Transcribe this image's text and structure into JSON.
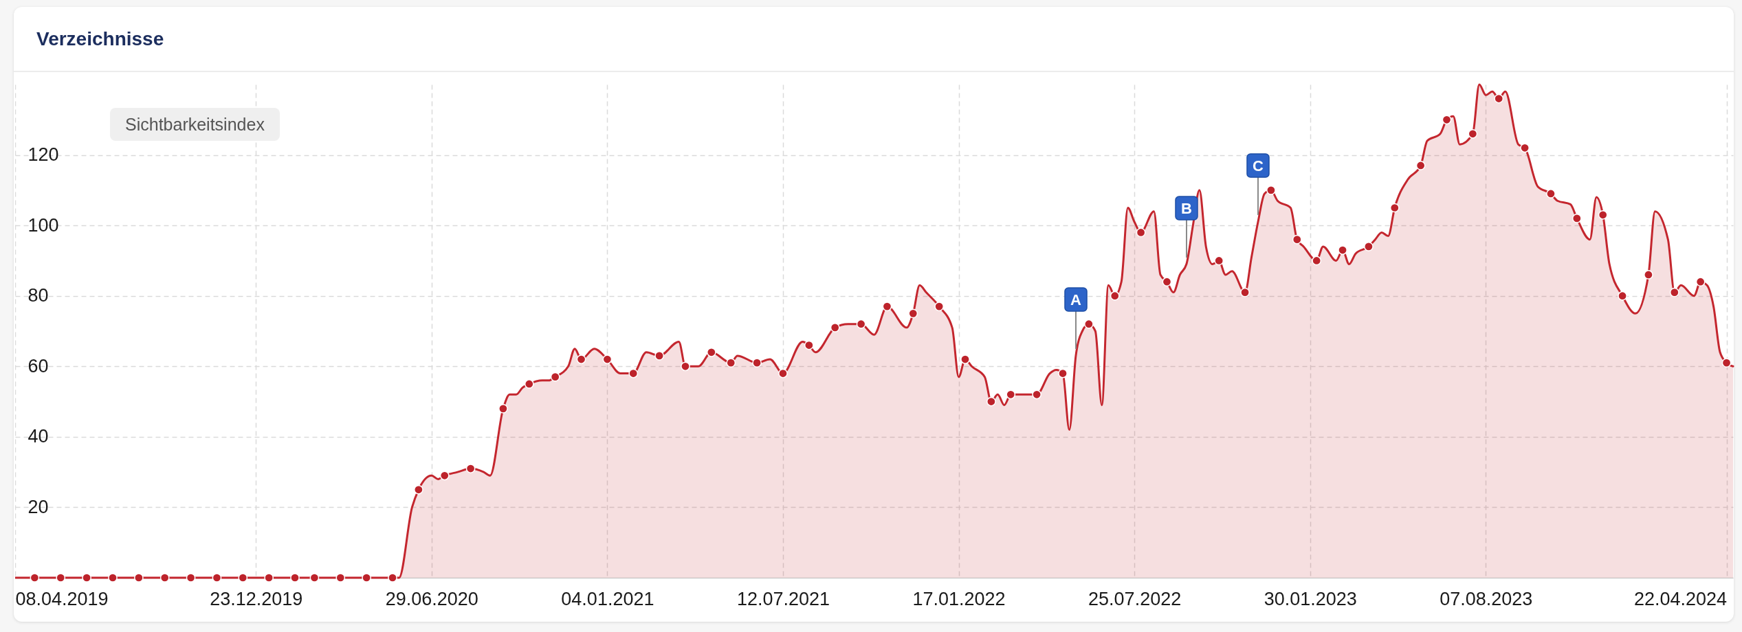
{
  "chart_data": {
    "type": "area",
    "title": "Verzeichnisse",
    "annotations": [
      "Sichtbarkeitsindex",
      {
        "text": "A",
        "x": "2022-05-23"
      },
      {
        "text": "B",
        "x": "2022-09-19"
      },
      {
        "text": "C",
        "x": "2022-12-05"
      }
    ],
    "xlim": [
      "2019-04-08",
      "2024-04-29"
    ],
    "xticks": [
      {
        "value": "2019-04-08",
        "label": "08.04.2019"
      },
      {
        "value": "2019-12-23",
        "label": "23.12.2019"
      },
      {
        "value": "2020-06-29",
        "label": "29.06.2020"
      },
      {
        "value": "2021-01-04",
        "label": "04.01.2021"
      },
      {
        "value": "2021-07-12",
        "label": "12.07.2021"
      },
      {
        "value": "2022-01-17",
        "label": "17.01.2022"
      },
      {
        "value": "2022-07-25",
        "label": "25.07.2022"
      },
      {
        "value": "2023-01-30",
        "label": "30.01.2023"
      },
      {
        "value": "2023-08-07",
        "label": "07.08.2023"
      },
      {
        "value": "2024-04-22",
        "label": "22.04.2024"
      }
    ],
    "ylim": [
      0,
      140
    ],
    "yticks": [
      20,
      40,
      60,
      80,
      100,
      120
    ],
    "grid": true,
    "series": [
      {
        "color": "#c4262e",
        "x": [
          "2019-04-08",
          "2019-04-29",
          "2019-05-27",
          "2019-06-24",
          "2019-07-22",
          "2019-08-19",
          "2019-09-16",
          "2019-10-14",
          "2019-11-11",
          "2019-12-09",
          "2020-01-06",
          "2020-02-03",
          "2020-02-24",
          "2020-03-23",
          "2020-04-20",
          "2020-05-18",
          "2020-05-25",
          "2020-06-08",
          "2020-06-15",
          "2020-06-29",
          "2020-07-06",
          "2020-07-13",
          "2020-07-27",
          "2020-08-10",
          "2020-08-24",
          "2020-08-31",
          "2020-09-14",
          "2020-09-21",
          "2020-09-28",
          "2020-10-05",
          "2020-10-12",
          "2020-10-26",
          "2020-11-02",
          "2020-11-09",
          "2020-11-23",
          "2020-11-30",
          "2020-12-07",
          "2020-12-21",
          "2021-01-04",
          "2021-01-18",
          "2021-02-01",
          "2021-02-15",
          "2021-03-01",
          "2021-03-22",
          "2021-03-29",
          "2021-04-12",
          "2021-04-26",
          "2021-05-17",
          "2021-05-24",
          "2021-06-14",
          "2021-06-28",
          "2021-07-12",
          "2021-08-02",
          "2021-08-09",
          "2021-08-16",
          "2021-09-06",
          "2021-09-20",
          "2021-10-04",
          "2021-10-18",
          "2021-11-01",
          "2021-11-22",
          "2021-11-29",
          "2021-12-06",
          "2021-12-13",
          "2021-12-27",
          "2022-01-10",
          "2022-01-17",
          "2022-01-24",
          "2022-01-31",
          "2022-02-14",
          "2022-02-21",
          "2022-02-28",
          "2022-03-07",
          "2022-03-14",
          "2022-03-28",
          "2022-04-11",
          "2022-04-25",
          "2022-05-02",
          "2022-05-09",
          "2022-05-16",
          "2022-05-23",
          "2022-05-30",
          "2022-06-06",
          "2022-06-13",
          "2022-06-20",
          "2022-06-27",
          "2022-07-04",
          "2022-07-11",
          "2022-07-18",
          "2022-07-25",
          "2022-08-01",
          "2022-08-15",
          "2022-08-22",
          "2022-08-29",
          "2022-09-05",
          "2022-09-12",
          "2022-09-19",
          "2022-09-26",
          "2022-10-03",
          "2022-10-10",
          "2022-10-17",
          "2022-10-24",
          "2022-10-31",
          "2022-11-07",
          "2022-11-21",
          "2022-11-28",
          "2022-12-05",
          "2022-12-12",
          "2022-12-19",
          "2022-12-26",
          "2023-01-09",
          "2023-01-16",
          "2023-01-23",
          "2023-02-06",
          "2023-02-13",
          "2023-02-27",
          "2023-03-06",
          "2023-03-13",
          "2023-03-20",
          "2023-04-03",
          "2023-04-10",
          "2023-04-17",
          "2023-04-24",
          "2023-05-01",
          "2023-05-15",
          "2023-05-29",
          "2023-06-05",
          "2023-06-19",
          "2023-06-26",
          "2023-07-03",
          "2023-07-10",
          "2023-07-24",
          "2023-07-31",
          "2023-08-07",
          "2023-08-14",
          "2023-08-21",
          "2023-08-28",
          "2023-09-11",
          "2023-09-18",
          "2023-10-02",
          "2023-10-16",
          "2023-10-23",
          "2023-11-06",
          "2023-11-13",
          "2023-11-27",
          "2023-12-04",
          "2023-12-11",
          "2023-12-18",
          "2024-01-01",
          "2024-01-15",
          "2024-01-29",
          "2024-02-05",
          "2024-02-19",
          "2024-02-26",
          "2024-03-04",
          "2024-03-18",
          "2024-03-25",
          "2024-04-01",
          "2024-04-08",
          "2024-04-15",
          "2024-04-22",
          "2024-04-29"
        ],
        "values": [
          0,
          0,
          0,
          0,
          0,
          0,
          0,
          0,
          0,
          0,
          0,
          0,
          0,
          0,
          0,
          0,
          0,
          20,
          25,
          29,
          28,
          29,
          30,
          31,
          30,
          29,
          48,
          52,
          52,
          54,
          55,
          56,
          56,
          57,
          60,
          65,
          62,
          65,
          62,
          58,
          58,
          64,
          63,
          67,
          60,
          60,
          64,
          61,
          63,
          61,
          62,
          58,
          67,
          66,
          64,
          71,
          72,
          72,
          69,
          77,
          71,
          75,
          83,
          81,
          77,
          71,
          57,
          62,
          60,
          57,
          50,
          52,
          49,
          52,
          52,
          52,
          58,
          59,
          58,
          42,
          63,
          70,
          72,
          70,
          49,
          83,
          80,
          84,
          105,
          101,
          98,
          104,
          86,
          84,
          81,
          86,
          89,
          100,
          110,
          94,
          89,
          90,
          86,
          87,
          81,
          91,
          101,
          109,
          110,
          107,
          105,
          96,
          94,
          90,
          94,
          90,
          93,
          89,
          92,
          94,
          96,
          98,
          97,
          105,
          113,
          117,
          124,
          126,
          130,
          131,
          123,
          126,
          140,
          137,
          138,
          136,
          138,
          123,
          122,
          111,
          109,
          107,
          106,
          102,
          96,
          108,
          103,
          89,
          80,
          75,
          86,
          104,
          96,
          81,
          83,
          80,
          84,
          83,
          77,
          64,
          61,
          60
        ]
      },
      {
        "type": "scatter",
        "marker": "circle",
        "color": "#bd232b",
        "x": [
          "2019-04-29",
          "2019-05-27",
          "2019-06-24",
          "2019-07-22",
          "2019-08-19",
          "2019-09-16",
          "2019-10-14",
          "2019-11-11",
          "2019-12-09",
          "2020-01-06",
          "2020-02-03",
          "2020-02-24",
          "2020-03-23",
          "2020-04-20",
          "2020-05-18",
          "2020-06-15",
          "2020-07-13",
          "2020-08-10",
          "2020-09-14",
          "2020-10-12",
          "2020-11-09",
          "2020-12-07",
          "2021-01-04",
          "2021-02-01",
          "2021-03-01",
          "2021-03-29",
          "2021-04-26",
          "2021-05-17",
          "2021-06-14",
          "2021-07-12",
          "2021-08-09",
          "2021-09-06",
          "2021-10-04",
          "2021-11-01",
          "2021-11-29",
          "2021-12-27",
          "2022-01-24",
          "2022-02-21",
          "2022-03-14",
          "2022-04-11",
          "2022-05-09",
          "2022-06-06",
          "2022-07-04",
          "2022-08-01",
          "2022-08-29",
          "2022-10-24",
          "2022-11-21",
          "2022-12-19",
          "2023-01-16",
          "2023-02-06",
          "2023-03-06",
          "2023-04-03",
          "2023-05-01",
          "2023-05-29",
          "2023-06-26",
          "2023-07-24",
          "2023-08-21",
          "2023-09-18",
          "2023-10-16",
          "2023-11-13",
          "2023-12-11",
          "2024-01-01",
          "2024-01-29",
          "2024-02-26",
          "2024-03-25",
          "2024-04-22"
        ],
        "values": [
          0,
          0,
          0,
          0,
          0,
          0,
          0,
          0,
          0,
          0,
          0,
          0,
          0,
          0,
          0,
          25,
          29,
          31,
          48,
          55,
          57,
          62,
          62,
          58,
          63,
          60,
          64,
          61,
          61,
          58,
          66,
          71,
          72,
          77,
          75,
          77,
          62,
          50,
          52,
          52,
          58,
          72,
          80,
          98,
          84,
          90,
          81,
          110,
          96,
          90,
          93,
          94,
          105,
          117,
          130,
          126,
          136,
          122,
          109,
          102,
          103,
          80,
          86,
          81,
          84,
          61
        ]
      }
    ]
  }
}
